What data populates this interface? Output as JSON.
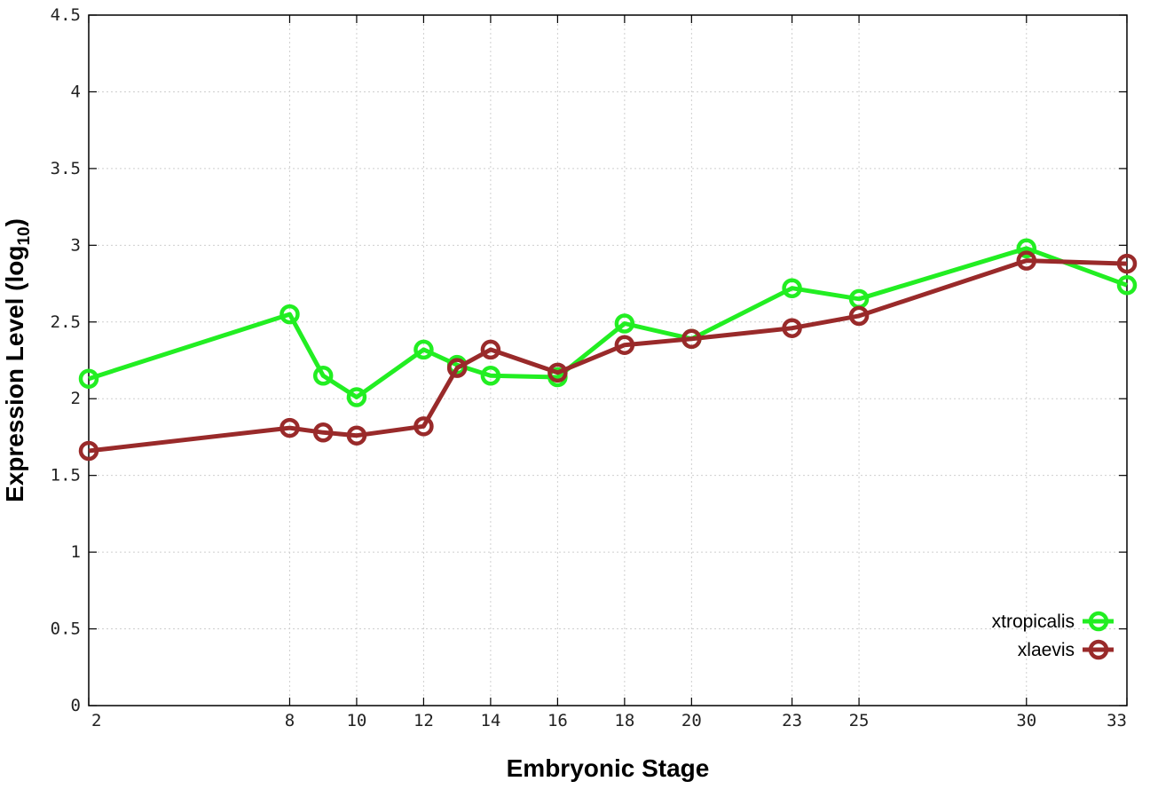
{
  "chart_data": {
    "type": "line",
    "title": "",
    "xlabel": "Embryonic Stage",
    "ylabel": "Expression Level (log",
    "ylabel_subscript": "10",
    "ylabel_close": ")",
    "x": [
      2,
      8,
      9,
      10,
      12,
      13,
      14,
      16,
      18,
      20,
      23,
      25,
      30,
      33
    ],
    "x_ticks": [
      2,
      8,
      10,
      12,
      14,
      16,
      18,
      20,
      23,
      25,
      30,
      33
    ],
    "y_ticks": [
      "0",
      "0.5",
      "1",
      "1.5",
      "2",
      "2.5",
      "3",
      "3.5",
      "4",
      "4.5"
    ],
    "xlim": [
      2,
      33
    ],
    "ylim": [
      0,
      4.5
    ],
    "grid": true,
    "legend_position": "bottom-right",
    "series": [
      {
        "name": "xtropicalis",
        "color": "#22ee22",
        "values": [
          2.13,
          2.55,
          2.15,
          2.01,
          2.32,
          2.22,
          2.15,
          2.14,
          2.49,
          2.39,
          2.72,
          2.65,
          2.98,
          2.74
        ]
      },
      {
        "name": "xlaevis",
        "color": "#992a2a",
        "values": [
          1.66,
          1.81,
          1.78,
          1.76,
          1.82,
          2.2,
          2.32,
          2.17,
          2.35,
          2.39,
          2.46,
          2.54,
          2.9,
          2.88
        ]
      }
    ]
  }
}
